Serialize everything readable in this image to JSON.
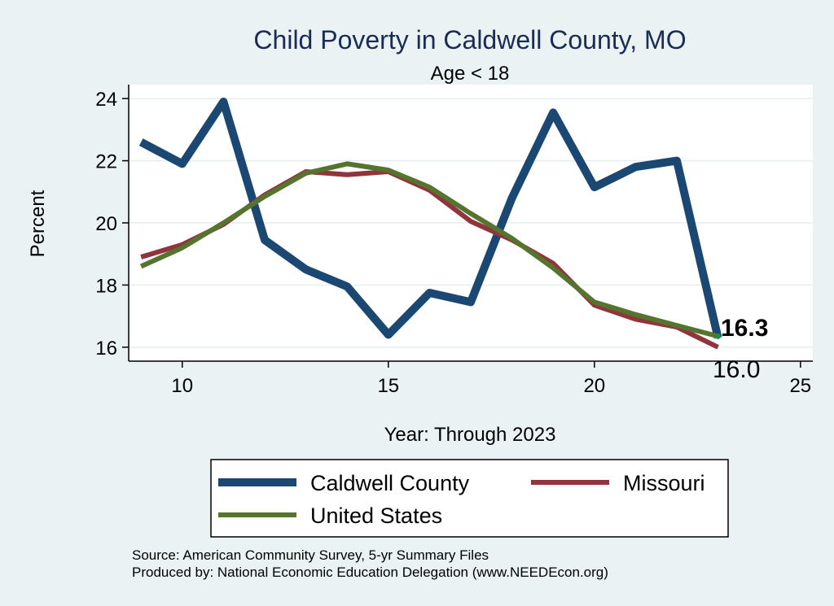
{
  "chart_data": {
    "type": "line",
    "title": "Child Poverty in Caldwell County, MO",
    "subtitle": "Age < 18",
    "xlabel": "Year: Through 2023",
    "ylabel": "Percent",
    "xlim": [
      8.7,
      25.3
    ],
    "ylim": [
      15.55,
      24.45
    ],
    "xticks": [
      10,
      15,
      20,
      25
    ],
    "yticks": [
      16,
      18,
      20,
      22,
      24
    ],
    "grid": true,
    "x": [
      9,
      10,
      11,
      12,
      13,
      14,
      15,
      16,
      17,
      18,
      19,
      20,
      21,
      22,
      23
    ],
    "series": [
      {
        "name": "Caldwell County",
        "color": "#1a4873",
        "values": [
          22.6,
          21.9,
          23.9,
          19.45,
          18.5,
          17.95,
          16.4,
          17.75,
          17.45,
          20.8,
          23.55,
          21.15,
          21.8,
          22.0,
          16.3
        ]
      },
      {
        "name": "Missouri",
        "color": "#90353b",
        "values": [
          18.9,
          19.3,
          19.95,
          20.9,
          21.65,
          21.55,
          21.65,
          21.05,
          20.05,
          19.45,
          18.7,
          17.35,
          16.9,
          16.65,
          16.0
        ]
      },
      {
        "name": "United States",
        "color": "#55752f",
        "values": [
          18.6,
          19.2,
          20.0,
          20.85,
          21.6,
          21.9,
          21.7,
          21.15,
          20.3,
          19.5,
          18.55,
          17.45,
          17.05,
          16.7,
          16.35
        ]
      }
    ],
    "end_labels": [
      "16.3",
      "16.0"
    ],
    "legend": [
      "Caldwell County",
      "Missouri",
      "United States"
    ],
    "legend_position": "bottom"
  },
  "source_line1": "Source: American Community Survey, 5-yr Summary Files",
  "source_line2": "Produced by: National Economic Education Delegation (www.NEEDEcon.org)"
}
